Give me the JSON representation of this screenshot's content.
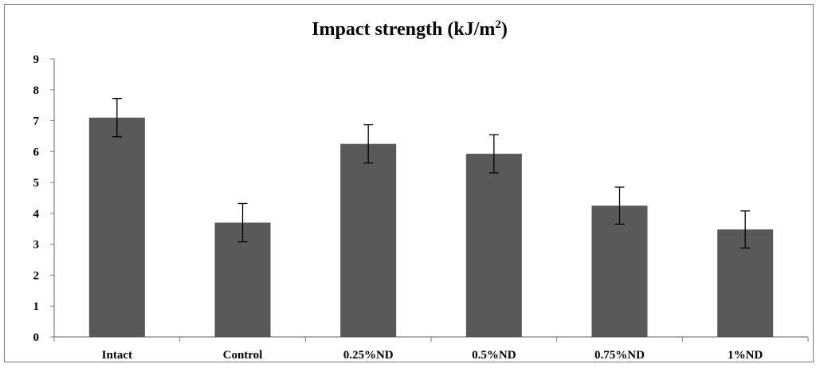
{
  "chart_data": {
    "type": "bar",
    "title": "Impact strength (kJ/m",
    "title_superscript": "2",
    "title_suffix": ")",
    "xlabel": "",
    "ylabel": "",
    "categories": [
      "Intact",
      "Control",
      "0.25%ND",
      "0.5%ND",
      "0.75%ND",
      "1%ND"
    ],
    "values": [
      7.1,
      3.7,
      6.25,
      5.93,
      4.25,
      3.48
    ],
    "errors": [
      0.62,
      0.62,
      0.62,
      0.62,
      0.6,
      0.6
    ],
    "ylim": [
      0,
      9
    ],
    "yticks": [
      "0",
      "1",
      "2",
      "3",
      "4",
      "5",
      "6",
      "7",
      "8",
      "9"
    ],
    "grid": false,
    "legend": "none",
    "bar_color": "#595959",
    "axis_color": "#7f7f7f"
  }
}
